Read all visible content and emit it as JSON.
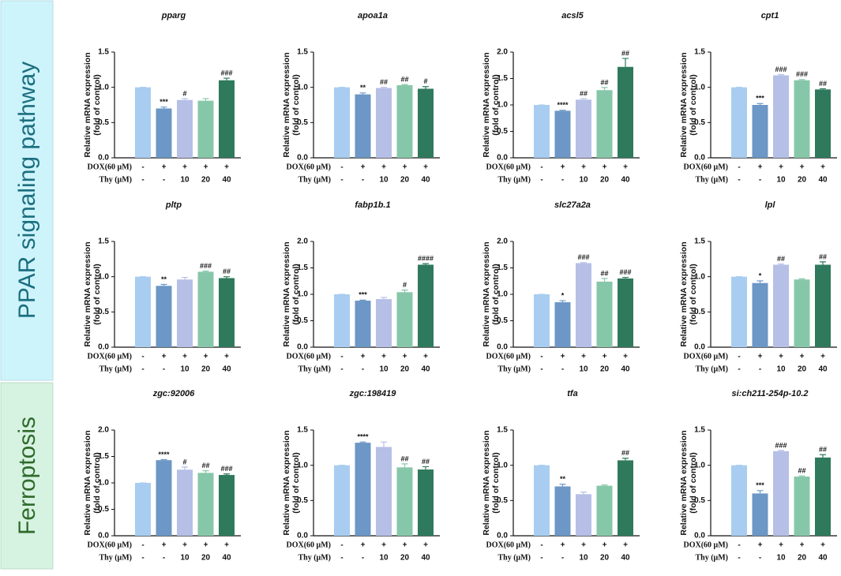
{
  "sections": [
    {
      "label": "PPAR signaling pathway"
    },
    {
      "label": "Ferroptosis"
    }
  ],
  "chart_data": [
    {
      "type": "bar",
      "title": "pparg",
      "ylabel": [
        "Relative mRNA expression",
        "(fold of control)"
      ],
      "values": [
        1.0,
        0.7,
        0.82,
        0.81,
        1.1
      ],
      "errors": [
        0,
        0.02,
        0.02,
        0.03,
        0.03
      ],
      "annotations": [
        null,
        "***",
        "#",
        null,
        "###"
      ],
      "colors": [
        "#a8cdf0",
        "#6c97c6",
        "#b6bfe6",
        "#87c7a9",
        "#2f7a5c"
      ],
      "ylim": [
        0,
        1.5
      ],
      "yticks": [
        {
          "value": 0,
          "label": "0.0"
        },
        0.5,
        {
          "value": 1,
          "label": "1.0"
        },
        1.5
      ],
      "treatments": [
        {
          "label": "DOX(60 μM)",
          "values": [
            "-",
            "+",
            "+",
            "+",
            "+"
          ]
        },
        {
          "label": "Thy (μM)",
          "values": [
            "-",
            "-",
            "10",
            "20",
            "40"
          ]
        }
      ]
    },
    {
      "type": "bar",
      "title": "apoa1a",
      "ylabel": [
        "Relative mRNA expression",
        "(fold of control)"
      ],
      "values": [
        1.0,
        0.9,
        0.99,
        1.03,
        0.98
      ],
      "errors": [
        0,
        0.02,
        0.01,
        0.01,
        0.03
      ],
      "annotations": [
        null,
        "**",
        "##",
        "##",
        "#"
      ],
      "colors": [
        "#a8cdf0",
        "#6c97c6",
        "#b6bfe6",
        "#87c7a9",
        "#2f7a5c"
      ],
      "ylim": [
        0,
        1.5
      ],
      "yticks": [
        {
          "value": 0,
          "label": "0.0"
        },
        0.5,
        {
          "value": 1,
          "label": "1.0"
        },
        1.5
      ],
      "treatments": [
        {
          "label": "DOX(60 μM)",
          "values": [
            "-",
            "+",
            "+",
            "+",
            "+"
          ]
        },
        {
          "label": "Thy (μM)",
          "values": [
            "-",
            "-",
            "10",
            "20",
            "40"
          ]
        }
      ]
    },
    {
      "type": "bar",
      "title": "acsl5",
      "ylabel": [
        "Relative mRNA expression",
        "(fold of control)"
      ],
      "values": [
        1.0,
        0.89,
        1.1,
        1.28,
        1.72
      ],
      "errors": [
        0,
        0.01,
        0.02,
        0.05,
        0.16
      ],
      "annotations": [
        null,
        "****",
        "##",
        "##",
        "##"
      ],
      "colors": [
        "#a8cdf0",
        "#6c97c6",
        "#b6bfe6",
        "#87c7a9",
        "#2f7a5c"
      ],
      "ylim": [
        0,
        2
      ],
      "yticks": [
        {
          "value": 0,
          "label": "0.0"
        },
        0.5,
        {
          "value": 1,
          "label": "1.0"
        },
        1.5,
        {
          "value": 2,
          "label": "2.0"
        }
      ],
      "treatments": [
        {
          "label": "DOX(60 μM)",
          "values": [
            "-",
            "+",
            "+",
            "+",
            "+"
          ]
        },
        {
          "label": "Thy (μM)",
          "values": [
            "-",
            "-",
            "10",
            "20",
            "40"
          ]
        }
      ]
    },
    {
      "type": "bar",
      "title": "cpt1",
      "ylabel": [
        "Relative mRNA expression",
        "(fold of control)"
      ],
      "values": [
        1.0,
        0.75,
        1.17,
        1.1,
        0.97
      ],
      "errors": [
        0,
        0.02,
        0.01,
        0.01,
        0.01
      ],
      "annotations": [
        null,
        "***",
        "###",
        "###",
        "##"
      ],
      "colors": [
        "#a8cdf0",
        "#6c97c6",
        "#b6bfe6",
        "#87c7a9",
        "#2f7a5c"
      ],
      "ylim": [
        0,
        1.5
      ],
      "yticks": [
        {
          "value": 0,
          "label": "0.0"
        },
        0.5,
        {
          "value": 1,
          "label": "1.0"
        },
        1.5
      ],
      "treatments": [
        {
          "label": "DOX(60 μM)",
          "values": [
            "-",
            "+",
            "+",
            "+",
            "+"
          ]
        },
        {
          "label": "Thy (μM)",
          "values": [
            "-",
            "-",
            "10",
            "20",
            "40"
          ]
        }
      ]
    },
    {
      "type": "bar",
      "title": "pltp",
      "ylabel": [
        "Relative mRNA expression",
        "(fold of control)"
      ],
      "values": [
        1.0,
        0.87,
        0.96,
        1.07,
        0.98
      ],
      "errors": [
        0,
        0.02,
        0.03,
        0.01,
        0.02
      ],
      "annotations": [
        null,
        "**",
        null,
        "###",
        "##"
      ],
      "colors": [
        "#a8cdf0",
        "#6c97c6",
        "#b6bfe6",
        "#87c7a9",
        "#2f7a5c"
      ],
      "ylim": [
        0,
        1.5
      ],
      "yticks": [
        {
          "value": 0,
          "label": "0.0"
        },
        0.5,
        {
          "value": 1,
          "label": "1.0"
        },
        1.5
      ],
      "treatments": [
        {
          "label": "DOX(60 μM)",
          "values": [
            "-",
            "+",
            "+",
            "+",
            "+"
          ]
        },
        {
          "label": "Thy (μM)",
          "values": [
            "-",
            "-",
            "10",
            "20",
            "40"
          ]
        }
      ]
    },
    {
      "type": "bar",
      "title": "fabp1b.1",
      "ylabel": [
        "Relative mRNA expression",
        "(fold of control)"
      ],
      "values": [
        1.0,
        0.88,
        0.91,
        1.04,
        1.56
      ],
      "errors": [
        0,
        0.01,
        0.03,
        0.04,
        0.02
      ],
      "annotations": [
        null,
        "***",
        null,
        "#",
        "####"
      ],
      "colors": [
        "#a8cdf0",
        "#6c97c6",
        "#b6bfe6",
        "#87c7a9",
        "#2f7a5c"
      ],
      "ylim": [
        0,
        2
      ],
      "yticks": [
        {
          "value": 0,
          "label": "0.0"
        },
        0.5,
        {
          "value": 1,
          "label": "1.0"
        },
        1.5,
        {
          "value": 2,
          "label": "2.0"
        }
      ],
      "treatments": [
        {
          "label": "DOX(60 μM)",
          "values": [
            "-",
            "+",
            "+",
            "+",
            "+"
          ]
        },
        {
          "label": "Thy (μM)",
          "values": [
            "-",
            "-",
            "10",
            "20",
            "40"
          ]
        }
      ]
    },
    {
      "type": "bar",
      "title": "slc27a2a",
      "ylabel": [
        "Relative mRNA expression",
        "(fold of control)"
      ],
      "values": [
        1.0,
        0.85,
        1.59,
        1.24,
        1.3
      ],
      "errors": [
        0,
        0.03,
        0.01,
        0.06,
        0.02
      ],
      "annotations": [
        null,
        "*",
        "###",
        "##",
        "###"
      ],
      "colors": [
        "#a8cdf0",
        "#6c97c6",
        "#b6bfe6",
        "#87c7a9",
        "#2f7a5c"
      ],
      "ylim": [
        0,
        2
      ],
      "yticks": [
        {
          "value": 0,
          "label": "0.0"
        },
        0.5,
        {
          "value": 1,
          "label": "1.0"
        },
        1.5,
        {
          "value": 2,
          "label": "2.0"
        }
      ],
      "treatments": [
        {
          "label": "DOX(60 μM)",
          "values": [
            "-",
            "+",
            "+",
            "+",
            "+"
          ]
        },
        {
          "label": "Thy (μM)",
          "values": [
            "-",
            "-",
            "10",
            "20",
            "40"
          ]
        }
      ]
    },
    {
      "type": "bar",
      "title": "lpl",
      "ylabel": [
        "Relative mRNA expression",
        "(fold of control)"
      ],
      "values": [
        1.0,
        0.91,
        1.17,
        0.96,
        1.17
      ],
      "errors": [
        0,
        0.03,
        0.01,
        0.01,
        0.04
      ],
      "annotations": [
        null,
        "*",
        "##",
        null,
        "##"
      ],
      "colors": [
        "#a8cdf0",
        "#6c97c6",
        "#b6bfe6",
        "#87c7a9",
        "#2f7a5c"
      ],
      "ylim": [
        0,
        1.5
      ],
      "yticks": [
        {
          "value": 0,
          "label": "0.0"
        },
        0.5,
        {
          "value": 1,
          "label": "1.0"
        },
        1.5
      ],
      "treatments": [
        {
          "label": "DOX(60 μM)",
          "values": [
            "-",
            "+",
            "+",
            "+",
            "+"
          ]
        },
        {
          "label": "Thy (μM)",
          "values": [
            "-",
            "-",
            "10",
            "20",
            "40"
          ]
        }
      ]
    },
    {
      "type": "bar",
      "title": "zgc:92006",
      "ylabel": [
        "Relative mRNA expression",
        "(fold of control)"
      ],
      "values": [
        1.0,
        1.43,
        1.25,
        1.19,
        1.15
      ],
      "errors": [
        0,
        0.01,
        0.05,
        0.04,
        0.02
      ],
      "annotations": [
        null,
        "****",
        "#",
        "##",
        "###"
      ],
      "colors": [
        "#a8cdf0",
        "#6c97c6",
        "#b6bfe6",
        "#87c7a9",
        "#2f7a5c"
      ],
      "ylim": [
        0,
        2
      ],
      "yticks": [
        {
          "value": 0,
          "label": "0.0"
        },
        0.5,
        {
          "value": 1,
          "label": "1.0"
        },
        1.5,
        {
          "value": 2,
          "label": "2.0"
        }
      ],
      "treatments": [
        {
          "label": "DOX(60 μM)",
          "values": [
            "-",
            "+",
            "+",
            "+",
            "+"
          ]
        },
        {
          "label": "Thy (μM)",
          "values": [
            "-",
            "-",
            "10",
            "20",
            "40"
          ]
        }
      ]
    },
    {
      "type": "bar",
      "title": "zgc:198419",
      "ylabel": [
        "Relative mRNA expression",
        "(fold of control)"
      ],
      "values": [
        1.0,
        1.32,
        1.26,
        0.97,
        0.94
      ],
      "errors": [
        0,
        0.01,
        0.07,
        0.05,
        0.04
      ],
      "annotations": [
        null,
        "****",
        null,
        "##",
        "##"
      ],
      "colors": [
        "#a8cdf0",
        "#6c97c6",
        "#b6bfe6",
        "#87c7a9",
        "#2f7a5c"
      ],
      "ylim": [
        0,
        1.5
      ],
      "yticks": [
        {
          "value": 0,
          "label": "0.0"
        },
        0.5,
        {
          "value": 1,
          "label": "1.0"
        },
        1.5
      ],
      "treatments": [
        {
          "label": "DOX(60 μM)",
          "values": [
            "-",
            "+",
            "+",
            "+",
            "+"
          ]
        },
        {
          "label": "Thy (μM)",
          "values": [
            "-",
            "-",
            "10",
            "20",
            "40"
          ]
        }
      ]
    },
    {
      "type": "bar",
      "title": "tfa",
      "ylabel": [
        "Relative mRNA expression",
        "(fold of control)"
      ],
      "values": [
        1.0,
        0.7,
        0.59,
        0.71,
        1.07
      ],
      "errors": [
        0,
        0.03,
        0.03,
        0.01,
        0.03
      ],
      "annotations": [
        null,
        "**",
        null,
        null,
        "##"
      ],
      "colors": [
        "#a8cdf0",
        "#6c97c6",
        "#b6bfe6",
        "#87c7a9",
        "#2f7a5c"
      ],
      "ylim": [
        0,
        1.5
      ],
      "yticks": [
        {
          "value": 0,
          "label": "0.0"
        },
        0.5,
        {
          "value": 1,
          "label": "1.0"
        },
        1.5
      ],
      "treatments": [
        {
          "label": "DOX(60 μM)",
          "values": [
            "-",
            "+",
            "+",
            "+",
            "+"
          ]
        },
        {
          "label": "Thy (μM)",
          "values": [
            "-",
            "-",
            "10",
            "20",
            "40"
          ]
        }
      ]
    },
    {
      "type": "bar",
      "title": "si:ch211-254p-10.2",
      "ylabel": [
        "Relative mRNA expression",
        "(fold of control)"
      ],
      "values": [
        1.0,
        0.6,
        1.2,
        0.84,
        1.11
      ],
      "errors": [
        0,
        0.04,
        0.01,
        0.01,
        0.04
      ],
      "annotations": [
        null,
        "***",
        "###",
        "##",
        "##"
      ],
      "colors": [
        "#a8cdf0",
        "#6c97c6",
        "#b6bfe6",
        "#87c7a9",
        "#2f7a5c"
      ],
      "ylim": [
        0,
        1.5
      ],
      "yticks": [
        {
          "value": 0,
          "label": "0.0"
        },
        0.5,
        {
          "value": 1,
          "label": "1.0"
        },
        1.5
      ],
      "treatments": [
        {
          "label": "DOX(60 μM)",
          "values": [
            "-",
            "+",
            "+",
            "+",
            "+"
          ]
        },
        {
          "label": "Thy (μM)",
          "values": [
            "-",
            "-",
            "10",
            "20",
            "40"
          ]
        }
      ]
    }
  ]
}
